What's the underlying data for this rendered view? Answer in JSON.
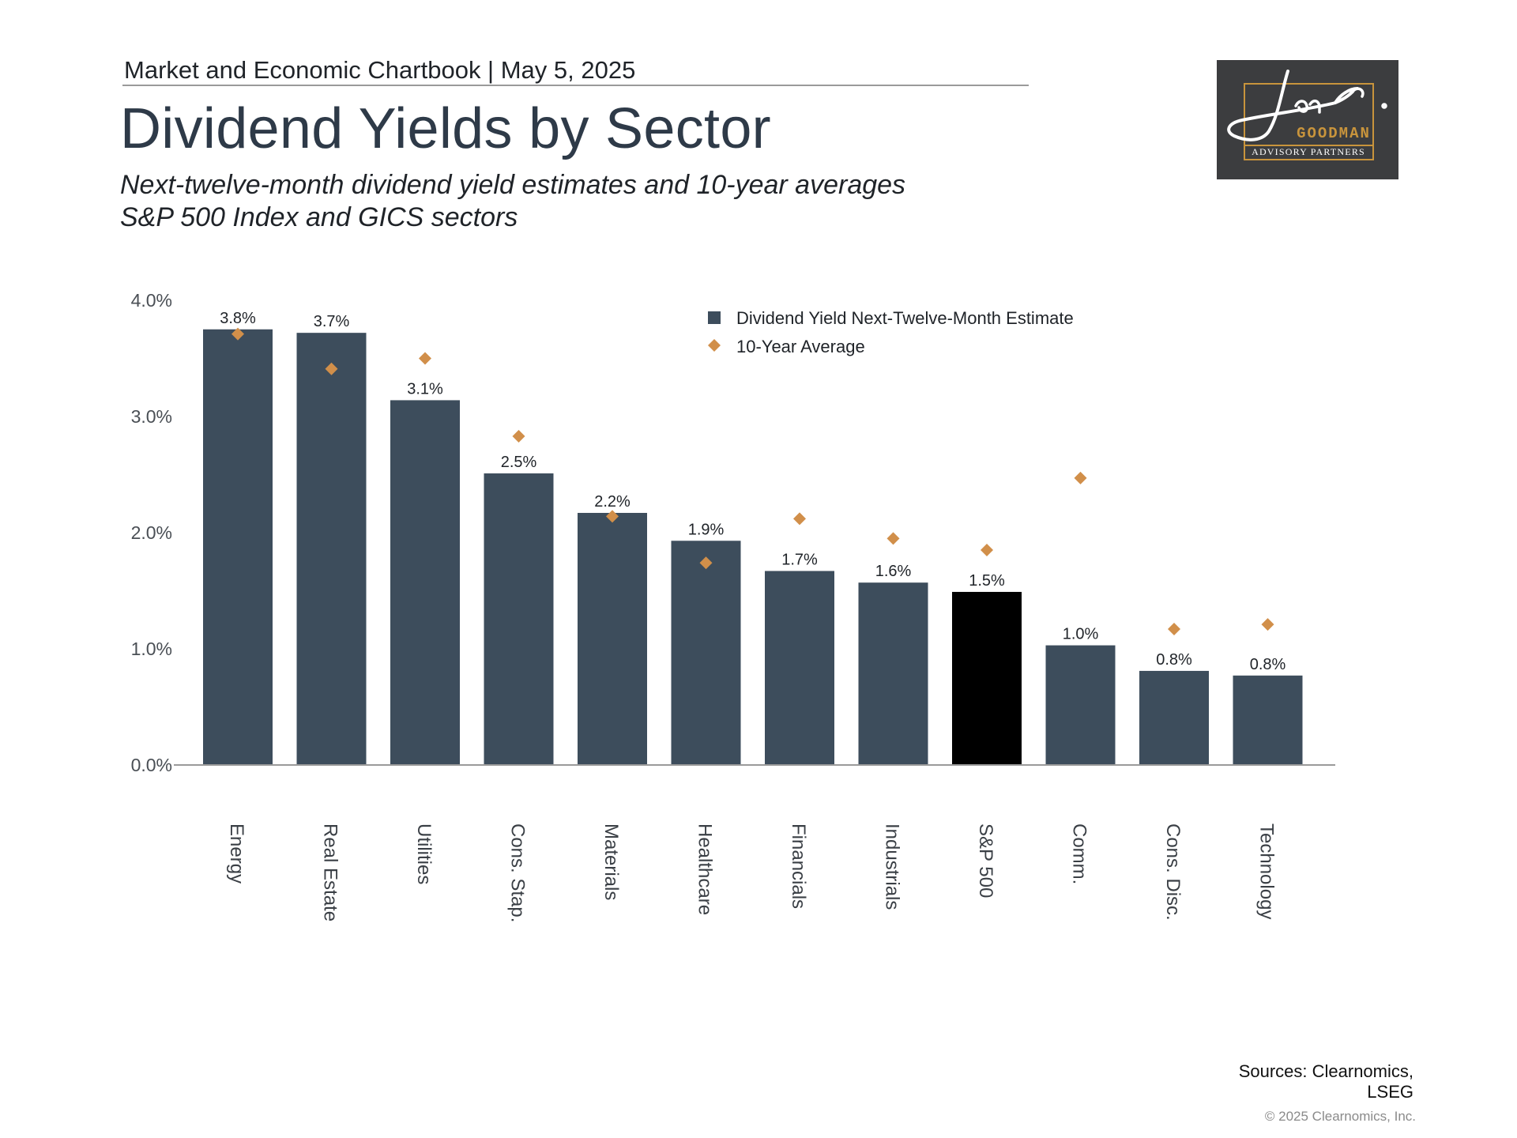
{
  "header": {
    "chartbook_label": "Market and Economic Chartbook | May 5, 2025",
    "title": "Dividend Yields by Sector",
    "subtitle_line1": "Next-twelve-month dividend yield estimates and 10-year averages",
    "subtitle_line2": "S&P 500 Index and GICS sectors"
  },
  "logo": {
    "brand": "GOODMAN",
    "tagline": "ADVISORY PARTNERS",
    "colors": {
      "background": "#3c3d3f",
      "accent": "#c8943c"
    }
  },
  "footer": {
    "sources_line1": "Sources: Clearnomics,",
    "sources_line2": "LSEG",
    "copyright": "© 2025 Clearnomics, Inc."
  },
  "chart_data": {
    "type": "bar",
    "categories": [
      "Energy",
      "Real Estate",
      "Utilities",
      "Cons. Stap.",
      "Materials",
      "Healthcare",
      "Financials",
      "Industrials",
      "S&P 500",
      "Comm.",
      "Cons. Disc.",
      "Technology"
    ],
    "series": [
      {
        "name": "Dividend Yield Next-Twelve-Month Estimate",
        "kind": "bar",
        "values": [
          3.75,
          3.72,
          3.14,
          2.51,
          2.17,
          1.93,
          1.67,
          1.57,
          1.49,
          1.03,
          0.81,
          0.77
        ],
        "data_labels": [
          "3.8%",
          "3.7%",
          "3.1%",
          "2.5%",
          "2.2%",
          "1.9%",
          "1.7%",
          "1.6%",
          "1.5%",
          "1.0%",
          "0.8%",
          "0.8%"
        ],
        "color": "#3d4d5c",
        "highlight": {
          "category": "S&P 500",
          "color": "#000000"
        }
      },
      {
        "name": "10-Year Average",
        "kind": "scatter-diamond",
        "values": [
          3.71,
          3.41,
          3.5,
          2.83,
          2.14,
          1.74,
          2.12,
          1.95,
          1.85,
          2.47,
          1.17,
          1.21
        ],
        "color": "#d18f4a"
      }
    ],
    "yticks": [
      "0.0%",
      "1.0%",
      "2.0%",
      "3.0%",
      "4.0%"
    ],
    "ylim": [
      0,
      4
    ],
    "grid": false,
    "legend_position": "top-center"
  }
}
